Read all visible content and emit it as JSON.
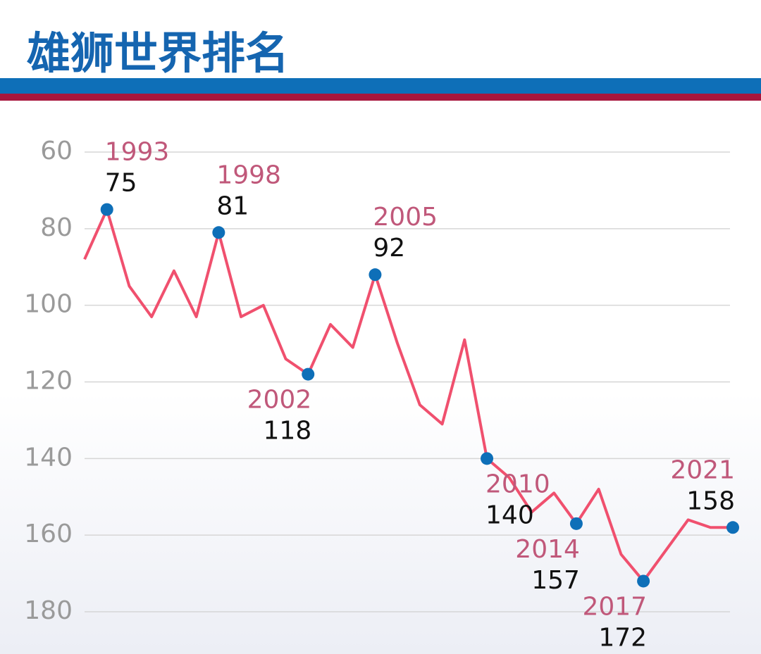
{
  "chart_data": {
    "type": "line",
    "title": "雄狮世界排名",
    "categories": [
      null,
      "1993",
      null,
      null,
      null,
      null,
      "1998",
      null,
      null,
      null,
      "2002",
      null,
      null,
      "2005",
      null,
      null,
      null,
      null,
      "2010",
      null,
      null,
      null,
      "2014",
      null,
      null,
      "2017",
      null,
      null,
      null,
      "2021"
    ],
    "values": [
      88,
      75,
      95,
      103,
      91,
      103,
      81,
      103,
      100,
      114,
      118,
      105,
      111,
      92,
      110,
      126,
      131,
      109,
      140,
      145,
      154,
      149,
      157,
      148,
      165,
      172,
      164,
      156,
      158,
      158
    ],
    "line_color": "#f0506e",
    "marker_color": "#0e6fb8",
    "label_color": "#c0587a",
    "ylim": [
      60,
      180
    ],
    "y_inverted": true,
    "yticks": [
      60,
      80,
      100,
      120,
      140,
      160,
      180
    ],
    "grid": true
  }
}
